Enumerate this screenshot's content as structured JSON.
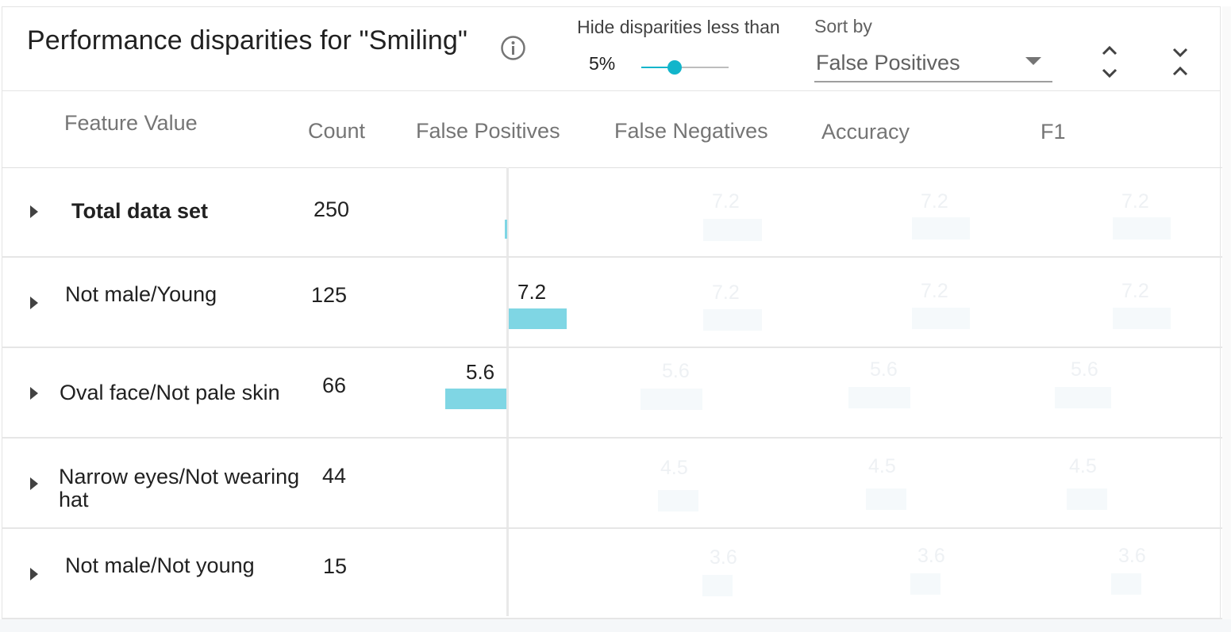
{
  "header": {
    "title": "Performance disparities for \"Smiling\"",
    "info_icon": "info-icon",
    "hide_label": "Hide disparities less than",
    "threshold_value": "5%",
    "threshold_fraction": 0.38,
    "sort_label": "Sort by",
    "sort_value": "False Positives",
    "expand_icon": "unfold-more-icon",
    "collapse_icon": "unfold-less-icon"
  },
  "columns": {
    "feature": "Feature Value",
    "count": "Count",
    "fp": "False Positives",
    "fn": "False Negatives",
    "accuracy": "Accuracy",
    "f1": "F1"
  },
  "colors": {
    "accent": "#12b5cb",
    "bar": "#7fd6e4"
  },
  "rows": [
    {
      "feature": "Total data set",
      "count": "250",
      "fp_label": "",
      "faded": [
        "7.2",
        "7.2",
        "7.2"
      ]
    },
    {
      "feature": "Not male/Young",
      "count": "125",
      "fp_label": "7.2",
      "faded": [
        "7.2",
        "7.2",
        "7.2"
      ]
    },
    {
      "feature": "Oval face/Not pale skin",
      "count": "66",
      "fp_label": "5.6",
      "faded": [
        "5.6",
        "5.6",
        "5.6"
      ]
    },
    {
      "feature": "Narrow eyes/Not wearing hat",
      "count": "44",
      "fp_label": "",
      "faded": [
        "4.5",
        "4.5",
        "4.5"
      ]
    },
    {
      "feature": "Not male/Not young",
      "count": "15",
      "fp_label": "",
      "faded": [
        "3.6",
        "3.6",
        "3.6"
      ]
    }
  ]
}
